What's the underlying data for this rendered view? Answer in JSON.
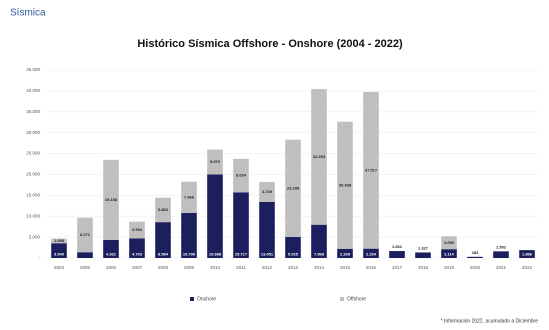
{
  "header": "Sísmica",
  "chart_data": {
    "type": "stacked-bar",
    "title": "Histórico Sísmica Offshore - Onshore (2004 - 2022)",
    "categories": [
      "2004",
      "2005",
      "2006",
      "2007",
      "2008",
      "2009",
      "2010",
      "2011",
      "2012",
      "2013",
      "2014",
      "2015",
      "2016",
      "2017",
      "2018",
      "2019",
      "2020",
      "2021",
      "2022"
    ],
    "series": [
      {
        "name": "Onshore",
        "color": "#1b1f5e",
        "values": [
          3540,
          1386,
          4331,
          4703,
          8584,
          10796,
          19988,
          15717,
          13451,
          5025,
          7968,
          2209,
          2234,
          1662,
          1327,
          2114,
          283,
          1592,
          1886
        ],
        "value_labels": [
          "3.540",
          "1.386",
          "4.331",
          "4.703",
          "8.584",
          "10.796",
          "19.988",
          "15.717",
          "13.451",
          "5.025",
          "7.968",
          "2.209",
          "2.234",
          "1.662",
          "1.327",
          "2.114",
          "283",
          "1.592",
          "1.886"
        ]
      },
      {
        "name": "Offshore",
        "color": "#bfbfbf",
        "values": [
          1098,
          8271,
          19158,
          3994,
          5853,
          7466,
          5970,
          8024,
          4739,
          23288,
          32454,
          30408,
          37517,
          null,
          null,
          3090,
          null,
          null,
          null
        ],
        "value_labels": [
          "1.098",
          "8.271",
          "19.158",
          "3.994",
          "5.853",
          "7.466",
          "5.970",
          "8.024",
          "4.739",
          "23.288",
          "32.454",
          "30.408",
          "37.517",
          null,
          null,
          "3.090",
          null,
          null,
          null
        ]
      }
    ],
    "ylim": [
      0,
      45000
    ],
    "yticks": [
      {
        "value": 0,
        "label": "-"
      },
      {
        "value": 5000,
        "label": "5.000"
      },
      {
        "value": 10000,
        "label": "10.000"
      },
      {
        "value": 15000,
        "label": "15.000"
      },
      {
        "value": 20000,
        "label": "20.000"
      },
      {
        "value": 25000,
        "label": "25.000"
      },
      {
        "value": 30000,
        "label": "30.000"
      },
      {
        "value": 35000,
        "label": "35.000"
      },
      {
        "value": 40000,
        "label": "40.000"
      },
      {
        "value": 45000,
        "label": "45.000"
      }
    ],
    "grid": true,
    "legend": "bottom",
    "footnote": "* Información 2022, acumulado a Diciembre"
  }
}
